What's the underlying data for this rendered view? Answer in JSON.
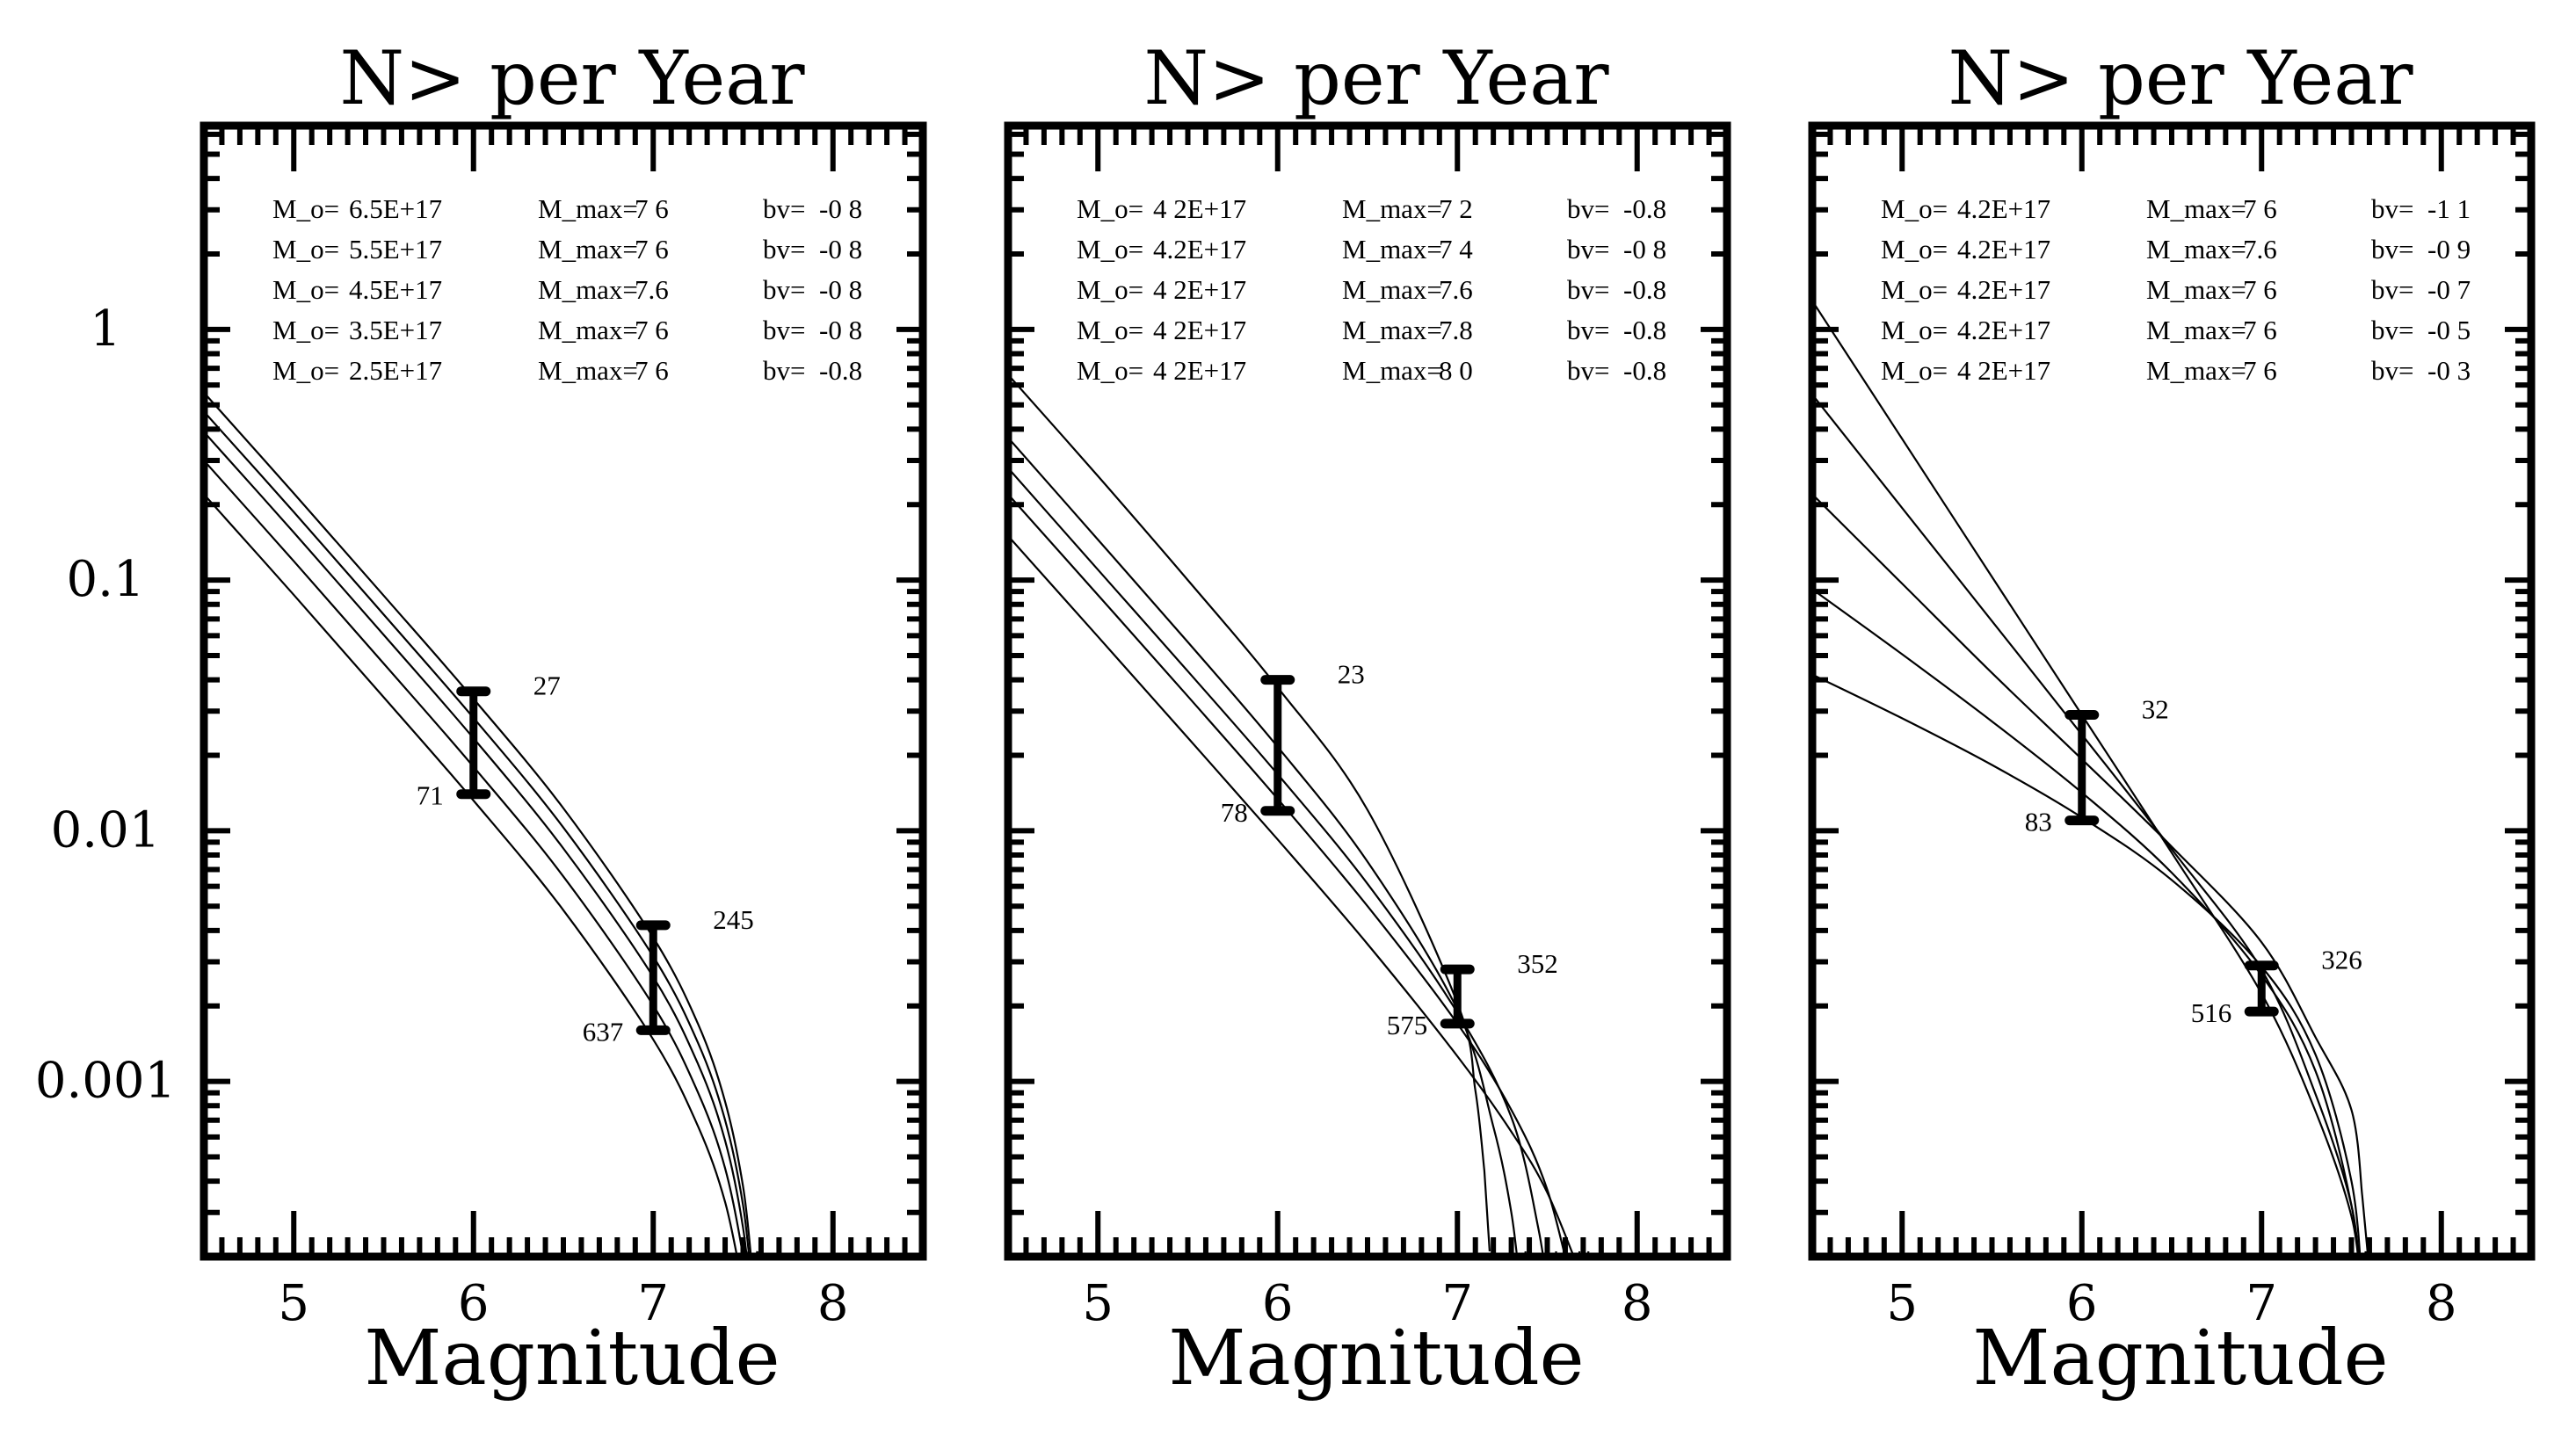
{
  "chart_data": [
    {
      "type": "line",
      "title": "N> per Year",
      "xlabel": "Magnitude",
      "ylabel": "",
      "xlim": [
        4.5,
        8.5
      ],
      "ylim": [
        0.0002,
        6.5
      ],
      "yscale": "log",
      "grid": false,
      "x_ticks": [
        5,
        6,
        7,
        8
      ],
      "x_tick_labels": [
        "5",
        "6",
        "7",
        "8"
      ],
      "y_ticks": [
        1,
        0.1,
        0.01,
        0.001
      ],
      "y_tick_labels": [
        "1",
        "0.1",
        "0.01",
        "0.001"
      ],
      "legend": [
        {
          "mo": "6.5E+17",
          "mmax": "7 6",
          "bv": "-0 8"
        },
        {
          "mo": "5.5E+17",
          "mmax": "7 6",
          "bv": "-0 8"
        },
        {
          "mo": "4.5E+17",
          "mmax": "7.6",
          "bv": "-0 8"
        },
        {
          "mo": "3.5E+17",
          "mmax": "7 6",
          "bv": "-0 8"
        },
        {
          "mo": "2.5E+17",
          "mmax": "7 6",
          "bv": "-0.8"
        }
      ],
      "series": [
        {
          "name": "M_o=6.5E+17 M_max=7.6 bv=-0.8",
          "x": [
            4.5,
            5,
            5.5,
            6,
            6.5,
            7,
            7.25,
            7.4,
            7.5,
            7.55
          ],
          "y": [
            0.56,
            0.222,
            0.0868,
            0.0336,
            0.0123,
            0.00375,
            0.00169,
            0.00083,
            0.00038,
            0.00018
          ]
        },
        {
          "name": "M_o=5.5E+17 M_max=7.6 bv=-0.8",
          "x": [
            4.5,
            5,
            5.5,
            6,
            6.5,
            7,
            7.25,
            7.4,
            7.5,
            7.55
          ],
          "y": [
            0.47,
            0.187,
            0.0729,
            0.0282,
            0.0103,
            0.00315,
            0.00142,
            0.0007,
            0.00032,
            0.00015
          ]
        },
        {
          "name": "M_o=4.5E+17 M_max=7.6 bv=-0.8",
          "x": [
            4.5,
            5,
            5.5,
            6,
            6.5,
            7,
            7.25,
            7.4,
            7.5,
            7.55
          ],
          "y": [
            0.39,
            0.155,
            0.0605,
            0.0234,
            0.0085,
            0.00261,
            0.00117,
            0.00058,
            0.00026,
            0.00012
          ]
        },
        {
          "name": "M_o=3.5E+17 M_max=7.6 bv=-0.8",
          "x": [
            4.5,
            5,
            5.5,
            6,
            6.5,
            7,
            7.25,
            7.4,
            7.5,
            7.55
          ],
          "y": [
            0.3,
            0.119,
            0.0465,
            0.018,
            0.00657,
            0.00201,
            0.0009,
            0.00045,
            0.0002,
            0.0001
          ]
        },
        {
          "name": "M_o=2.5E+17 M_max=7.6 bv=-0.8",
          "x": [
            4.5,
            5,
            5.5,
            6,
            6.5,
            7,
            7.25,
            7.4,
            7.5
          ],
          "y": [
            0.22,
            0.0873,
            0.0341,
            0.0132,
            0.00482,
            0.00147,
            0.00066,
            0.00033,
            0.00015
          ]
        }
      ],
      "error_bars": [
        {
          "x": 6,
          "low": 0.014,
          "high": 0.036,
          "label_high": "27",
          "label_low": "71"
        },
        {
          "x": 7,
          "low": 0.0016,
          "high": 0.0042,
          "label_high": "245",
          "label_low": "637"
        }
      ]
    },
    {
      "type": "line",
      "title": "N> per Year",
      "xlabel": "Magnitude",
      "ylabel": "",
      "xlim": [
        4.5,
        8.5
      ],
      "ylim": [
        0.0002,
        6.5
      ],
      "yscale": "log",
      "grid": false,
      "x_ticks": [
        5,
        6,
        7,
        8
      ],
      "x_tick_labels": [
        "5",
        "6",
        "7",
        "8"
      ],
      "y_ticks": [
        1,
        0.1,
        0.01,
        0.001
      ],
      "y_tick_labels": [
        "1",
        "0.1",
        "0.01",
        "0.001"
      ],
      "legend": [
        {
          "mo": "4 2E+17",
          "mmax": "7 2",
          "bv": "-0.8"
        },
        {
          "mo": "4.2E+17",
          "mmax": "7 4",
          "bv": "-0 8"
        },
        {
          "mo": "4 2E+17",
          "mmax": "7.6",
          "bv": "-0.8"
        },
        {
          "mo": "4 2E+17",
          "mmax": "7.8",
          "bv": "-0.8"
        },
        {
          "mo": "4 2E+17",
          "mmax": "8 0",
          "bv": "-0.8"
        }
      ],
      "series": [
        {
          "name": "M_o=4.2E+17 M_max=7.2 bv=-0.8",
          "x": [
            4.5,
            5,
            5.5,
            6,
            6.5,
            7,
            7.1,
            7.15
          ],
          "y": [
            0.66,
            0.26,
            0.1,
            0.0373,
            0.0121,
            0.00205,
            0.00092,
            0.00044
          ]
        },
        {
          "name": "M_o=4.2E+17 M_max=7.4 bv=-0.8",
          "x": [
            4.5,
            5,
            5.5,
            6,
            6.5,
            7,
            7.2,
            7.3,
            7.35
          ],
          "y": [
            0.37,
            0.145,
            0.0566,
            0.0216,
            0.00752,
            0.00193,
            0.00066,
            0.0003,
            0.00015
          ]
        },
        {
          "name": "M_o=4.2E+17 M_max=7.6 bv=-0.8",
          "x": [
            4.5,
            5,
            5.5,
            6,
            6.5,
            7,
            7.3,
            7.45,
            7.52
          ],
          "y": [
            0.28,
            0.11,
            0.0433,
            0.0168,
            0.00614,
            0.00188,
            0.00072,
            0.00026,
            0.00012
          ]
        },
        {
          "name": "M_o=4.2E+17 M_max=7.8 bv=-0.8",
          "x": [
            4.5,
            5,
            5.5,
            6,
            6.5,
            7,
            7.3,
            7.5,
            7.65
          ],
          "y": [
            0.22,
            0.0872,
            0.0344,
            0.0134,
            0.005,
            0.0017,
            0.00077,
            0.00037,
            0.00014
          ]
        },
        {
          "name": "M_o=4.2E+17 M_max=8.0 bv=-0.8",
          "x": [
            4.5,
            5,
            5.5,
            6,
            6.5,
            7,
            7.3,
            7.5,
            7.7
          ],
          "y": [
            0.15,
            0.0595,
            0.0235,
            0.00923,
            0.00353,
            0.00126,
            0.00063,
            0.00036,
            0.00016
          ]
        }
      ],
      "error_bars": [
        {
          "x": 6,
          "low": 0.012,
          "high": 0.04,
          "label_high": "23",
          "label_low": "78"
        },
        {
          "x": 7,
          "low": 0.0017,
          "high": 0.0028,
          "label_high": "352",
          "label_low": "575"
        }
      ]
    },
    {
      "type": "line",
      "title": "N> per Year",
      "xlabel": "Magnitude",
      "ylabel": "",
      "xlim": [
        4.5,
        8.5
      ],
      "ylim": [
        0.0002,
        6.5
      ],
      "yscale": "log",
      "grid": false,
      "x_ticks": [
        5,
        6,
        7,
        8
      ],
      "x_tick_labels": [
        "5",
        "6",
        "7",
        "8"
      ],
      "y_ticks": [
        1,
        0.1,
        0.01,
        0.001
      ],
      "y_tick_labels": [
        "1",
        "0.1",
        "0.01",
        "0.001"
      ],
      "legend": [
        {
          "mo": "4.2E+17",
          "mmax": "7 6",
          "bv": "-1 1"
        },
        {
          "mo": "4.2E+17",
          "mmax": "7.6",
          "bv": "-0 9"
        },
        {
          "mo": "4.2E+17",
          "mmax": "7 6",
          "bv": "-0 7"
        },
        {
          "mo": "4.2E+17",
          "mmax": "7 6",
          "bv": "-0 5"
        },
        {
          "mo": "4 2E+17",
          "mmax": "7 6",
          "bv": "-0 3"
        }
      ],
      "series": [
        {
          "name": "M_o=4.2E+17 M_max=7.6 bv=-1.1",
          "x": [
            4.5,
            5,
            5.5,
            6,
            6.5,
            7,
            7.3,
            7.5,
            7.55
          ],
          "y": [
            1.3,
            0.366,
            0.103,
            0.029,
            0.00817,
            0.00224,
            0.00076,
            0.00029,
            0.00015
          ]
        },
        {
          "name": "M_o=4.2E+17 M_max=7.6 bv=-0.9",
          "x": [
            4.5,
            5,
            5.5,
            6,
            6.5,
            7,
            7.3,
            7.5,
            7.55
          ],
          "y": [
            0.55,
            0.194,
            0.0686,
            0.0242,
            0.00844,
            0.00279,
            0.00089,
            0.00032,
            0.00015
          ]
        },
        {
          "name": "M_o=4.2E+17 M_max=7.6 bv=-0.7",
          "x": [
            4.5,
            5,
            5.5,
            6,
            6.5,
            7,
            7.3,
            7.5,
            7.56
          ],
          "y": [
            0.22,
            0.0968,
            0.0426,
            0.0193,
            0.00864,
            0.00359,
            0.0015,
            0.00077,
            0.00035
          ]
        },
        {
          "name": "M_o=4.2E+17 M_max=7.6 bv=-0.5",
          "x": [
            4.5,
            5,
            5.5,
            6,
            6.5,
            7,
            7.3,
            7.5,
            7.56
          ],
          "y": [
            0.092,
            0.0506,
            0.0273,
            0.0142,
            0.0068,
            0.00265,
            0.0011,
            0.00032,
            0.00013
          ]
        },
        {
          "name": "M_o=4.2E+17 M_max=7.6 bv=-0.3",
          "x": [
            4.5,
            5,
            5.5,
            6,
            6.5,
            7,
            7.3,
            7.5,
            7.56
          ],
          "y": [
            0.042,
            0.0281,
            0.0183,
            0.0113,
            0.00636,
            0.00287,
            0.00128,
            0.0004,
            0.00015
          ]
        }
      ],
      "error_bars": [
        {
          "x": 6,
          "low": 0.011,
          "high": 0.029,
          "label_high": "32",
          "label_low": "83"
        },
        {
          "x": 7,
          "low": 0.0019,
          "high": 0.0029,
          "label_high": "326",
          "label_low": "516"
        }
      ]
    }
  ],
  "legend_keys": {
    "mo": "M_o=",
    "mmax": "M_max=",
    "bv": "bv="
  }
}
